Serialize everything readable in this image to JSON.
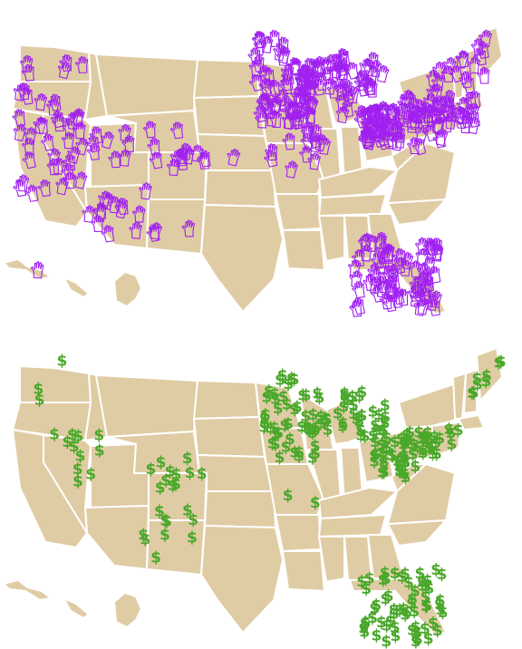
{
  "maps": [
    {
      "name": "hands-map",
      "marker": "hand-icon",
      "marker_color": "#a020f0",
      "clusters": [
        {
          "state": "Washington",
          "count": 5
        },
        {
          "state": "Oregon",
          "count": 6
        },
        {
          "state": "California",
          "count": 26
        },
        {
          "state": "Nevada",
          "count": 4
        },
        {
          "state": "Arizona",
          "count": 10
        },
        {
          "state": "Utah",
          "count": 8
        },
        {
          "state": "Colorado",
          "count": 14
        },
        {
          "state": "New Mexico",
          "count": 6
        },
        {
          "state": "Nebraska",
          "count": 1
        },
        {
          "state": "Minnesota",
          "count": 22
        },
        {
          "state": "Wisconsin",
          "count": 40
        },
        {
          "state": "Michigan",
          "count": 30
        },
        {
          "state": "Iowa",
          "count": 35
        },
        {
          "state": "Missouri",
          "count": 8
        },
        {
          "state": "Illinois",
          "count": 6
        },
        {
          "state": "Ohio",
          "count": 45
        },
        {
          "state": "Pennsylvania",
          "count": 50
        },
        {
          "state": "New York",
          "count": 8
        },
        {
          "state": "Vermont",
          "count": 3
        },
        {
          "state": "New Hampshire",
          "count": 4
        },
        {
          "state": "Maine",
          "count": 3
        },
        {
          "state": "Virginia",
          "count": 4
        },
        {
          "state": "North Carolina",
          "count": 3
        },
        {
          "state": "Florida",
          "count": 70
        },
        {
          "state": "Hawaii",
          "count": 1
        }
      ]
    },
    {
      "name": "dollars-map",
      "marker": "dollar-sign",
      "marker_color": "#4aa82a",
      "marker_text": "$",
      "clusters": [
        {
          "state": "Washington",
          "count": 1
        },
        {
          "state": "Oregon",
          "count": 2
        },
        {
          "state": "Nevada",
          "count": 11
        },
        {
          "state": "Colorado",
          "count": 11
        },
        {
          "state": "New Mexico",
          "count": 10
        },
        {
          "state": "Minnesota",
          "count": 20
        },
        {
          "state": "Wisconsin",
          "count": 22
        },
        {
          "state": "Michigan",
          "count": 22
        },
        {
          "state": "Iowa",
          "count": 18
        },
        {
          "state": "Missouri",
          "count": 2
        },
        {
          "state": "Ohio",
          "count": 30
        },
        {
          "state": "Pennsylvania",
          "count": 28
        },
        {
          "state": "Virginia",
          "count": 3
        },
        {
          "state": "New Hampshire",
          "count": 5
        },
        {
          "state": "Maine",
          "count": 3
        },
        {
          "state": "Florida",
          "count": 60
        }
      ]
    }
  ]
}
